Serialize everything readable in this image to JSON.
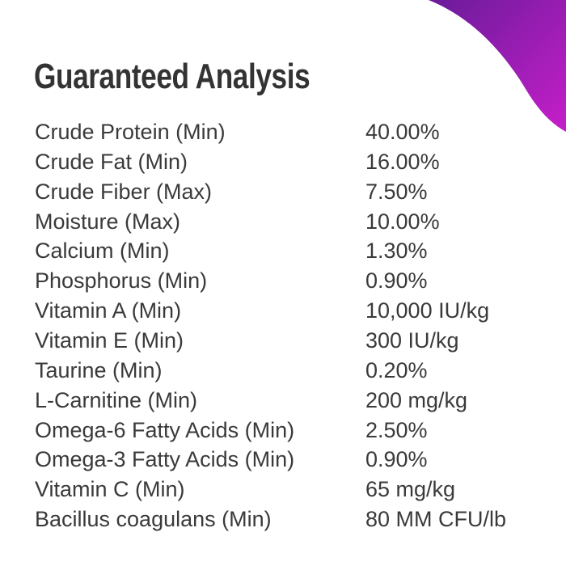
{
  "header": {
    "title": "Guaranteed Analysis"
  },
  "table": {
    "rows": [
      [
        "Crude Protein (Min)",
        "40.00%"
      ],
      [
        "Crude Fat (Min)",
        "16.00%"
      ],
      [
        "Crude Fiber (Max)",
        "7.50%"
      ],
      [
        "Moisture (Max)",
        "10.00%"
      ],
      [
        "Calcium (Min)",
        "1.30%"
      ],
      [
        "Phosphorus (Min)",
        "0.90%"
      ],
      [
        "Vitamin A (Min)",
        "10,000 IU/kg"
      ],
      [
        "Vitamin E (Min)",
        "300 IU/kg"
      ],
      [
        "Taurine (Min)",
        "0.20%"
      ],
      [
        "L-Carnitine (Min)",
        "200 mg/kg"
      ],
      [
        "Omega-6 Fatty Acids (Min)",
        "2.50%"
      ],
      [
        "Omega-3 Fatty Acids (Min)",
        "0.90%"
      ],
      [
        "Vitamin C (Min)",
        "65 mg/kg"
      ],
      [
        "Bacillus coagulans (Min)",
        "80 MM CFU/lb"
      ]
    ]
  }
}
